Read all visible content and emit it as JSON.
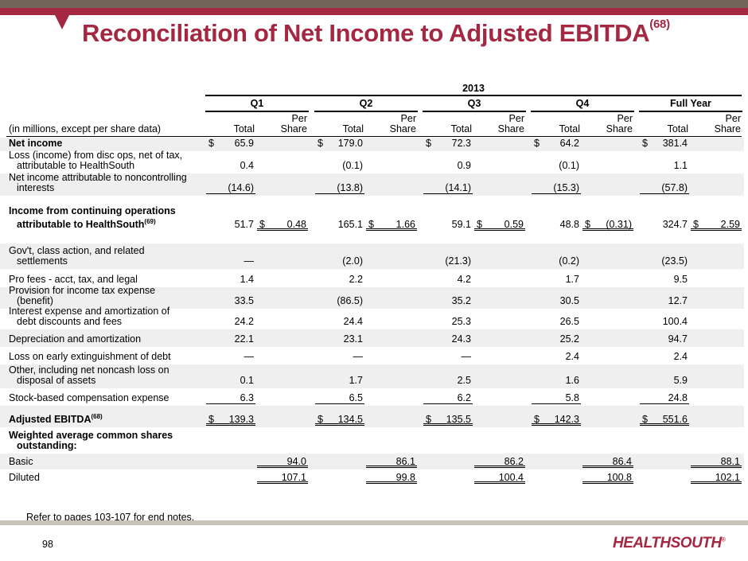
{
  "title": "Reconciliation of Net Income to Adjusted EBITDA",
  "title_note": "(68)",
  "year": "2013",
  "periods": [
    "Q1",
    "Q2",
    "Q3",
    "Q4",
    "Full Year"
  ],
  "units_label": "(in millions, except per share data)",
  "sub_total": "Total",
  "sub_per": "Per",
  "sub_share": "Share",
  "rows": [
    {
      "label": [
        "Net income"
      ],
      "bold": true,
      "shade": true,
      "h": 17,
      "cells": [
        [
          "$|65.9",
          ""
        ],
        [
          "$|179.0",
          ""
        ],
        [
          "$|72.3",
          ""
        ],
        [
          "$|64.2",
          ""
        ],
        [
          "$|381.4",
          ""
        ]
      ]
    },
    {
      "label": [
        "Loss (income) from disc ops, net of tax,",
        "attributable to HealthSouth"
      ],
      "h": 28,
      "cells": [
        [
          "0.4",
          ""
        ],
        [
          "(0.1)",
          ""
        ],
        [
          "0.9",
          ""
        ],
        [
          "(0.1)",
          ""
        ],
        [
          "1.1",
          ""
        ]
      ]
    },
    {
      "label": [
        "Net income attributable to noncontrolling",
        "interests"
      ],
      "shade": true,
      "h": 28,
      "u": [
        "1",
        ""
      ],
      "cells": [
        [
          "(14.6)",
          ""
        ],
        [
          "(13.8)",
          ""
        ],
        [
          "(14.1)",
          ""
        ],
        [
          "(15.3)",
          ""
        ],
        [
          "(57.8)",
          ""
        ]
      ]
    },
    {
      "label": [
        "Income from continuing operations",
        "attributable to HealthSouth"
      ],
      "note": "(69)",
      "bold": true,
      "h": 46,
      "u": [
        "",
        "2"
      ],
      "cells": [
        [
          "51.7",
          "$|0.48"
        ],
        [
          "165.1",
          "$|1.66"
        ],
        [
          "59.1",
          "$|0.59"
        ],
        [
          "48.8",
          "$|(0.31)"
        ],
        [
          "324.7",
          "$|2.59"
        ]
      ]
    },
    {
      "gap": true,
      "h": 14
    },
    {
      "label": [
        "Gov't, class action, and related",
        "settlements"
      ],
      "shade": true,
      "h": 32,
      "cells": [
        [
          "—",
          ""
        ],
        [
          "(2.0)",
          ""
        ],
        [
          "(21.3)",
          ""
        ],
        [
          "(0.2)",
          ""
        ],
        [
          "(23.5)",
          ""
        ]
      ]
    },
    {
      "label": [
        "Pro fees - acct, tax, and legal"
      ],
      "h": 23,
      "cells": [
        [
          "1.4",
          ""
        ],
        [
          "2.2",
          ""
        ],
        [
          "4.2",
          ""
        ],
        [
          "1.7",
          ""
        ],
        [
          "9.5",
          ""
        ]
      ]
    },
    {
      "label": [
        "Provision for income tax expense",
        "(benefit)"
      ],
      "shade": true,
      "h": 27,
      "cells": [
        [
          "33.5",
          ""
        ],
        [
          "(86.5)",
          ""
        ],
        [
          "35.2",
          ""
        ],
        [
          "30.5",
          ""
        ],
        [
          "12.7",
          ""
        ]
      ]
    },
    {
      "label": [
        "Interest expense and amortization of",
        "debt discounts and fees"
      ],
      "h": 26,
      "cells": [
        [
          "24.2",
          ""
        ],
        [
          "24.4",
          ""
        ],
        [
          "25.3",
          ""
        ],
        [
          "26.5",
          ""
        ],
        [
          "100.4",
          ""
        ]
      ]
    },
    {
      "label": [
        "Depreciation and amortization"
      ],
      "shade": true,
      "h": 22,
      "cells": [
        [
          "22.1",
          ""
        ],
        [
          "23.1",
          ""
        ],
        [
          "24.3",
          ""
        ],
        [
          "25.2",
          ""
        ],
        [
          "94.7",
          ""
        ]
      ]
    },
    {
      "label": [
        "Loss on early extinguishment of debt"
      ],
      "h": 22,
      "cells": [
        [
          "—",
          ""
        ],
        [
          "—",
          ""
        ],
        [
          "—",
          ""
        ],
        [
          "2.4",
          ""
        ],
        [
          "2.4",
          ""
        ]
      ]
    },
    {
      "label": [
        "Other, including net noncash loss on",
        "disposal of assets"
      ],
      "shade": true,
      "h": 30,
      "cells": [
        [
          "0.1",
          ""
        ],
        [
          "1.7",
          ""
        ],
        [
          "2.5",
          ""
        ],
        [
          "1.6",
          ""
        ],
        [
          "5.9",
          ""
        ]
      ]
    },
    {
      "label": [
        "Stock-based compensation expense"
      ],
      "h": 22,
      "u": [
        "1",
        ""
      ],
      "cells": [
        [
          "6.3",
          ""
        ],
        [
          "6.5",
          ""
        ],
        [
          "6.2",
          ""
        ],
        [
          "5.8",
          ""
        ],
        [
          "24.8",
          ""
        ]
      ]
    },
    {
      "label": [
        "Adjusted EBITDA"
      ],
      "note": "(68)",
      "bold": true,
      "shade": true,
      "h": 27,
      "u": [
        "2",
        ""
      ],
      "cells": [
        [
          "$|139.3",
          ""
        ],
        [
          "$|134.5",
          ""
        ],
        [
          "$|135.5",
          ""
        ],
        [
          "$|142.3",
          ""
        ],
        [
          "$|551.6",
          ""
        ]
      ]
    },
    {
      "label": [
        "Weighted average common shares",
        "outstanding:"
      ],
      "bold": true,
      "h": 33,
      "cells": [
        [
          "",
          ""
        ],
        [
          "",
          ""
        ],
        [
          "",
          ""
        ],
        [
          "",
          ""
        ],
        [
          "",
          ""
        ]
      ]
    },
    {
      "label": [
        "Basic"
      ],
      "shade": true,
      "h": 20,
      "u": [
        "",
        "2"
      ],
      "cells": [
        [
          "",
          "94.0"
        ],
        [
          "",
          "86.1"
        ],
        [
          "",
          "86.2"
        ],
        [
          "",
          "86.4"
        ],
        [
          "",
          "88.1"
        ]
      ]
    },
    {
      "label": [
        "Diluted"
      ],
      "h": 20,
      "u": [
        "",
        "2"
      ],
      "cells": [
        [
          "",
          "107.1"
        ],
        [
          "",
          "99.8"
        ],
        [
          "",
          "100.4"
        ],
        [
          "",
          "100.8"
        ],
        [
          "",
          "102.1"
        ]
      ]
    }
  ],
  "footnote": "Refer to pages 103-107 for end notes.",
  "page_number": "98",
  "logo": "HEALTHSOUTH"
}
